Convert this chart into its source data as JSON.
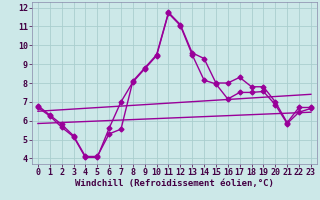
{
  "xlabel": "Windchill (Refroidissement éolien,°C)",
  "bg_color": "#cce8e8",
  "grid_color": "#aacece",
  "line_color": "#990099",
  "xlim": [
    -0.5,
    23.5
  ],
  "ylim": [
    3.7,
    12.3
  ],
  "yticks": [
    4,
    5,
    6,
    7,
    8,
    9,
    10,
    11,
    12
  ],
  "xticks": [
    0,
    1,
    2,
    3,
    4,
    5,
    6,
    7,
    8,
    9,
    10,
    11,
    12,
    13,
    14,
    15,
    16,
    17,
    18,
    19,
    20,
    21,
    22,
    23
  ],
  "line1_x": [
    0,
    1,
    2,
    3,
    4,
    5,
    6,
    7,
    8,
    9,
    10,
    11,
    12,
    13,
    14,
    15,
    16,
    17,
    18,
    19,
    20,
    21,
    22,
    23
  ],
  "line1_y": [
    6.8,
    6.3,
    5.8,
    5.2,
    4.1,
    4.1,
    5.3,
    5.55,
    8.1,
    8.8,
    9.5,
    11.75,
    11.1,
    9.6,
    9.3,
    8.0,
    8.0,
    8.3,
    7.8,
    7.8,
    7.0,
    5.9,
    6.7,
    6.7
  ],
  "line2_x": [
    0,
    1,
    2,
    3,
    4,
    5,
    6,
    7,
    8,
    9,
    10,
    11,
    12,
    13,
    14,
    15,
    16,
    17,
    18,
    19,
    20,
    21,
    22,
    23
  ],
  "line2_y": [
    6.7,
    6.25,
    5.65,
    5.15,
    4.05,
    4.05,
    5.6,
    7.0,
    8.05,
    8.75,
    9.45,
    11.7,
    11.05,
    9.5,
    8.15,
    7.95,
    7.15,
    7.5,
    7.5,
    7.55,
    6.85,
    5.85,
    6.45,
    6.65
  ],
  "line3_x": [
    0,
    23
  ],
  "line3_y": [
    6.5,
    7.4
  ],
  "line4_x": [
    0,
    23
  ],
  "line4_y": [
    5.85,
    6.45
  ],
  "markersize": 2.5,
  "linewidth": 1.0,
  "xlabel_fontsize": 6.5,
  "tick_fontsize": 6.0
}
